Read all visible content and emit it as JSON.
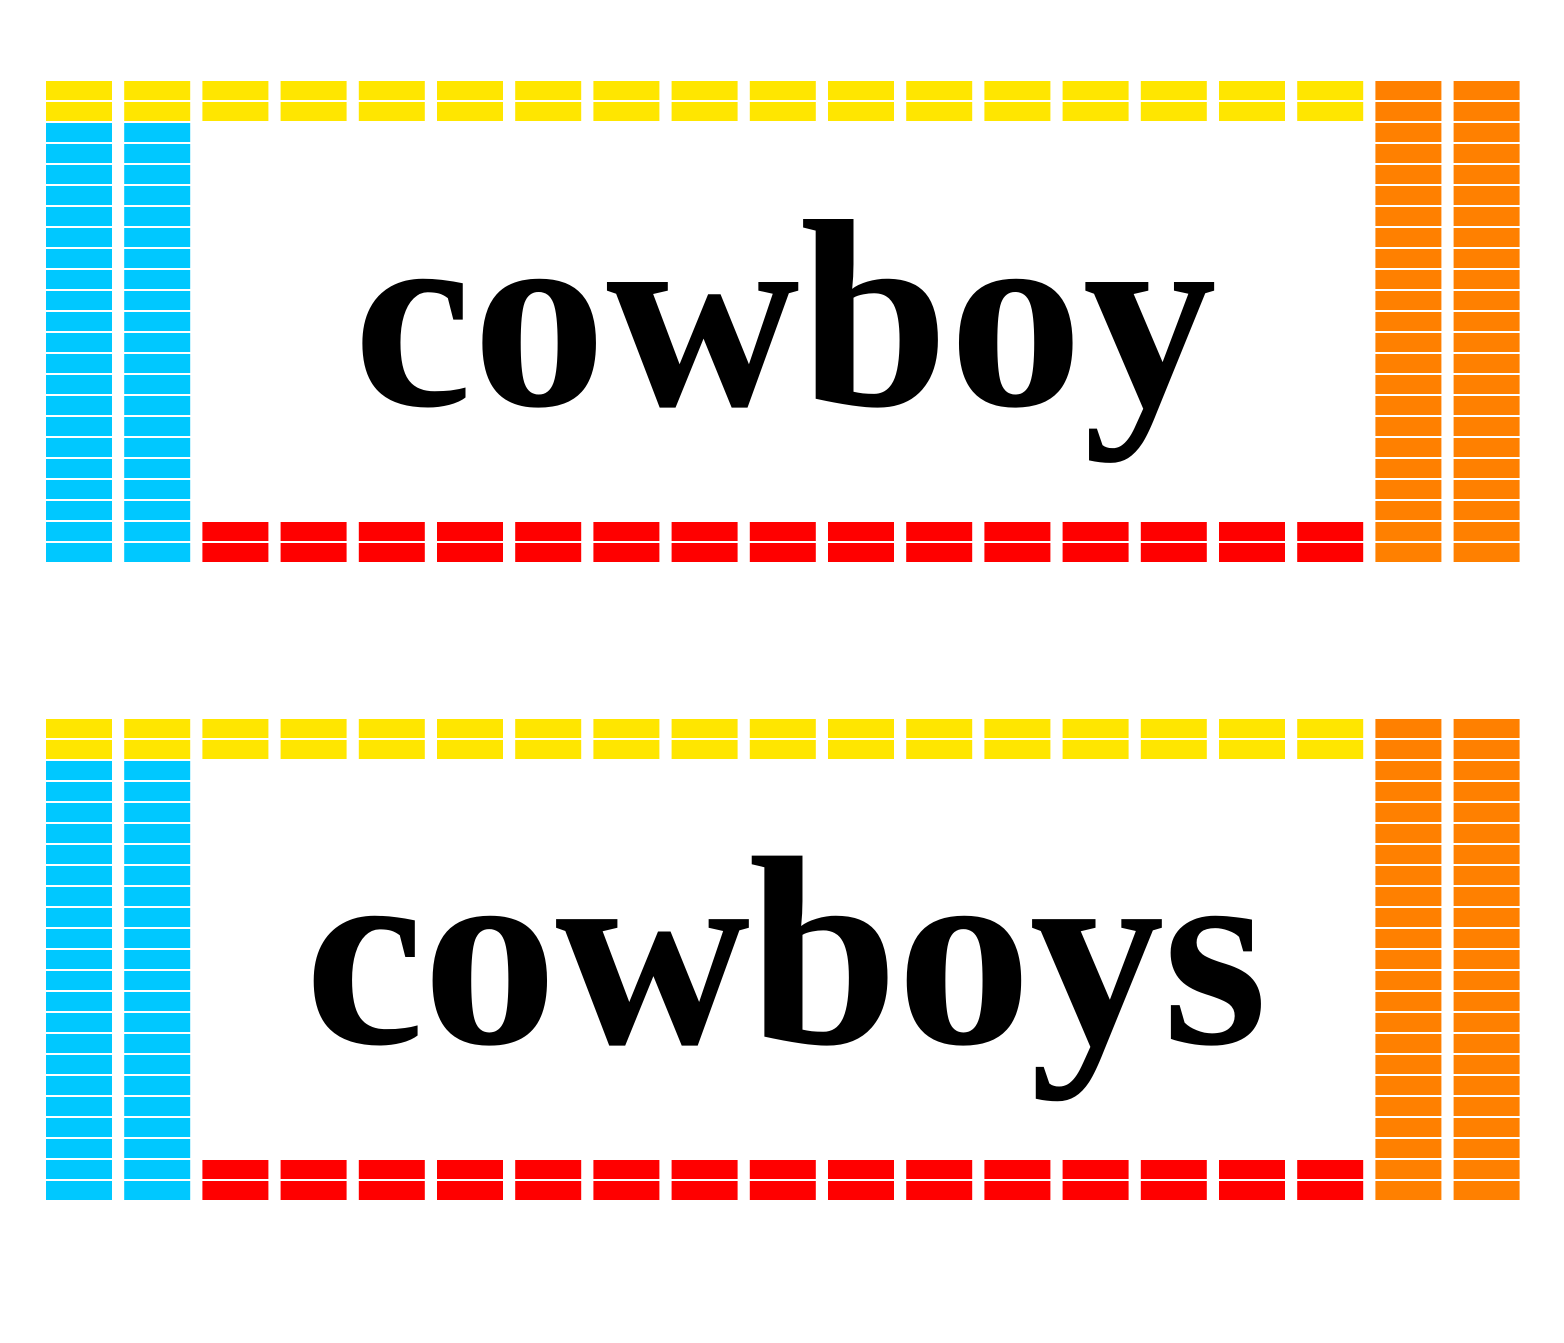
{
  "colors": {
    "top_border": "#FFE600",
    "left_border": "#00C8FF",
    "right_border": "#FF8000",
    "bottom_border": "#FF0000",
    "text": "#000000",
    "background": "#FFFFFF"
  },
  "cards": [
    {
      "word": "cowboy"
    },
    {
      "word": "cowboys"
    }
  ]
}
